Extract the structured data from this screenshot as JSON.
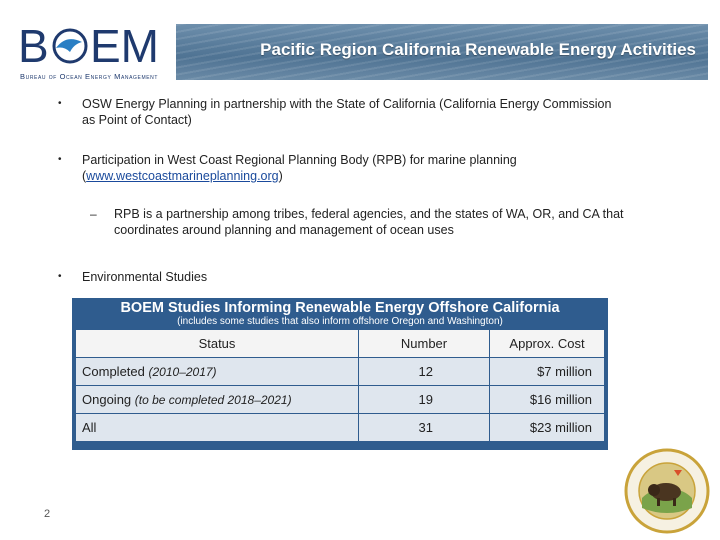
{
  "header": {
    "logo_text": "BOEM",
    "logo_subtitle": "Bureau of Ocean Energy Management",
    "title": "Pacific Region California Renewable Energy Activities"
  },
  "bullets": [
    {
      "text": "OSW Energy Planning in partnership with the  State of California (California Energy Commission as Point of Contact)"
    },
    {
      "text_before": "Participation in West Coast Regional Planning Body (RPB) for marine planning (",
      "link": "www.westcoastmarineplanning.org",
      "text_after": ")"
    },
    {
      "text": "RPB is a partnership among tribes, federal agencies, and the states of WA, OR, and CA that coordinates around planning and management of ocean uses"
    },
    {
      "text": "Environmental Studies"
    }
  ],
  "studies_table": {
    "title": "BOEM Studies Informing Renewable Energy Offshore California",
    "subtitle": "(includes some studies that also inform offshore Oregon and Washington)",
    "columns": [
      "Status",
      "Number",
      "Approx. Cost"
    ],
    "rows": [
      {
        "status": "Completed",
        "period": "(2010–2017)",
        "number": "12",
        "cost": "$7 million"
      },
      {
        "status": "Ongoing",
        "period": "(to be completed 2018–2021)",
        "number": "19",
        "cost": "$16 million"
      },
      {
        "status": "All",
        "period": "",
        "number": "31",
        "cost": "$23 million"
      }
    ]
  },
  "footer": {
    "page_number": "2",
    "seal_text": "U.S. DEPARTMENT OF THE INTERIOR • MARCH 3, 1849"
  },
  "colors": {
    "brand_blue": "#1f3a6e",
    "table_blue": "#2f5c8e",
    "link": "#1a4a9c"
  }
}
